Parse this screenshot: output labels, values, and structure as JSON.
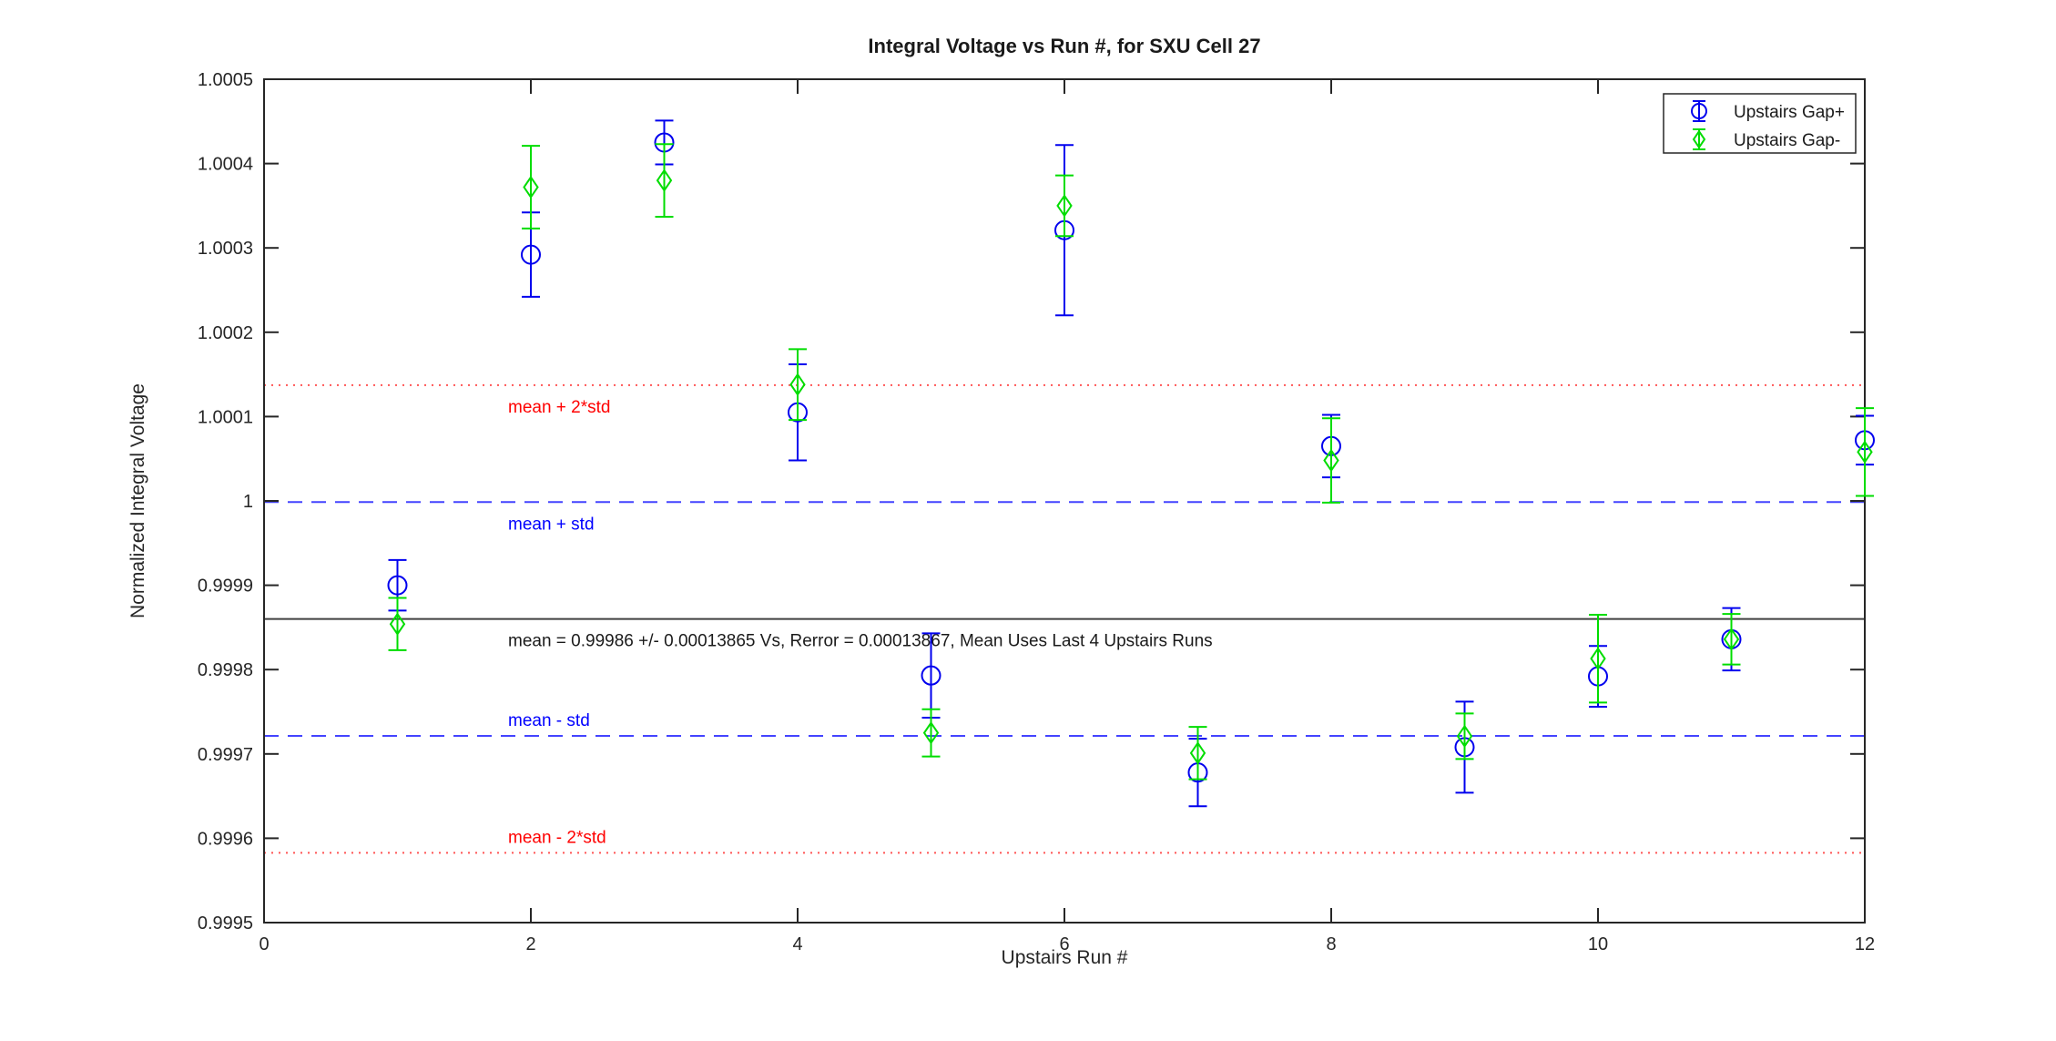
{
  "figure": {
    "background_color": "#ffffff",
    "axes_color": "#262626",
    "text_color": "#262626"
  },
  "chart_data": {
    "type": "scatter",
    "title": "Integral Voltage vs Run #, for SXU Cell 27",
    "xlabel": "Upstairs Run #",
    "ylabel": "Normalized Integral Voltage",
    "xlim": [
      0,
      12
    ],
    "ylim": [
      0.9995,
      1.0005
    ],
    "grid": false,
    "xticks": [
      0,
      2,
      4,
      6,
      8,
      10,
      12
    ],
    "xtick_labels": [
      "0",
      "2",
      "4",
      "6",
      "8",
      "10",
      "12"
    ],
    "yticks": [
      1.0005,
      1.0004,
      1.0003,
      1.0002,
      1.0001,
      1.0,
      0.9999,
      0.9998,
      0.9997,
      0.9996,
      0.9995
    ],
    "ytick_labels": [
      "1.0005",
      "1.0004",
      "1.0003",
      "1.0002",
      "1.0001",
      "1",
      "0.9999",
      "0.9998",
      "0.9997",
      "0.9996",
      "0.9995"
    ],
    "x": [
      1,
      2,
      3,
      4,
      5,
      6,
      7,
      8,
      9,
      10,
      11,
      12
    ],
    "series": [
      {
        "name": "Upstairs Gap+",
        "marker": "circle",
        "color": "#0000ee",
        "values": [
          0.9999,
          1.000292,
          1.000425,
          1.000105,
          0.999793,
          1.000321,
          0.999678,
          1.000065,
          0.999708,
          0.999792,
          0.999836,
          1.000072
        ],
        "errors": [
          3e-05,
          5e-05,
          2.6e-05,
          5.7e-05,
          5e-05,
          0.000101,
          4e-05,
          3.7e-05,
          5.4e-05,
          3.6e-05,
          3.7e-05,
          2.9e-05
        ]
      },
      {
        "name": "Upstairs Gap-",
        "marker": "diamond",
        "color": "#00dd00",
        "values": [
          0.999854,
          1.000372,
          1.00038,
          1.000138,
          0.999725,
          1.00035,
          0.999701,
          1.000048,
          0.999721,
          0.999813,
          0.999836,
          1.000058
        ],
        "errors": [
          3.1e-05,
          4.9e-05,
          4.3e-05,
          4.2e-05,
          2.8e-05,
          3.6e-05,
          3.1e-05,
          5e-05,
          2.7e-05,
          5.2e-05,
          3e-05,
          5.2e-05
        ]
      }
    ],
    "reference_lines": [
      {
        "name": "mean-plus-2std-line",
        "label": "mean + 2*std",
        "value": 1.0001373,
        "line_style": "dotted",
        "line_color": "#ff5555",
        "label_color": "#ff0000",
        "label_position": "below"
      },
      {
        "name": "mean-plus-std-line",
        "label": "mean + std",
        "value": 0.99999865,
        "line_style": "dashed",
        "line_color": "#4444ff",
        "label_color": "#0000ff",
        "label_position": "below"
      },
      {
        "name": "mean-line",
        "label": "mean = 0.99986 +/- 0.00013865 Vs, Rerror = 0.00013867, Mean Uses Last 4 Upstairs Runs",
        "value": 0.99986,
        "line_style": "solid",
        "line_color": "#404040",
        "label_color": "#1a1a1a",
        "label_position": "below"
      },
      {
        "name": "mean-minus-std-line",
        "label": "mean - std",
        "value": 0.99972135,
        "line_style": "dashed",
        "line_color": "#4444ff",
        "label_color": "#0000ff",
        "label_position": "above"
      },
      {
        "name": "mean-minus-2std-line",
        "label": "mean - 2*std",
        "value": 0.9995827,
        "line_style": "dotted",
        "line_color": "#ff5555",
        "label_color": "#ff0000",
        "label_position": "above"
      }
    ],
    "legend": {
      "position": "top-right",
      "entries": [
        "Upstairs Gap+",
        "Upstairs Gap-"
      ]
    }
  }
}
